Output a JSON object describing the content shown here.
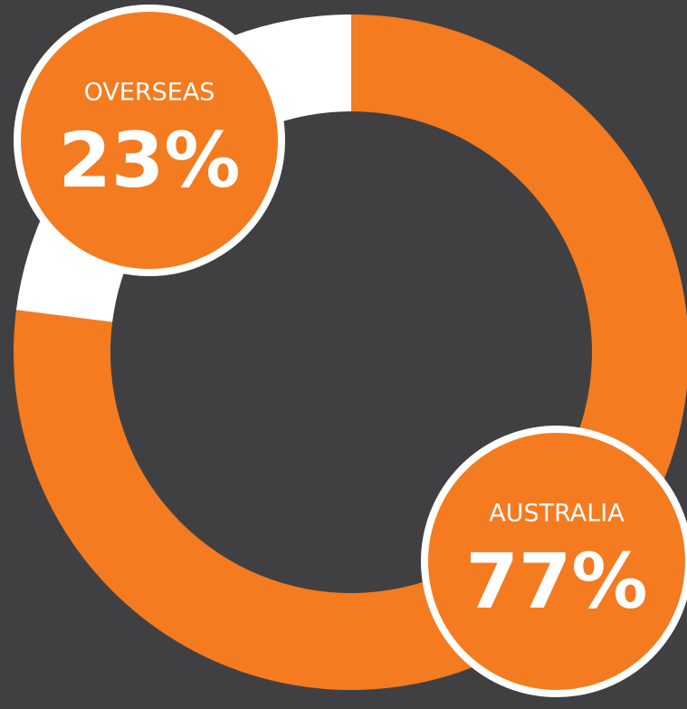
{
  "chart_data": {
    "type": "pie",
    "categories": [
      "AUSTRALIA",
      "OVERSEAS"
    ],
    "values": [
      77,
      23
    ],
    "value_labels": [
      "77%",
      "23%"
    ],
    "colors": [
      "#f47b20",
      "#ffffff"
    ]
  }
}
